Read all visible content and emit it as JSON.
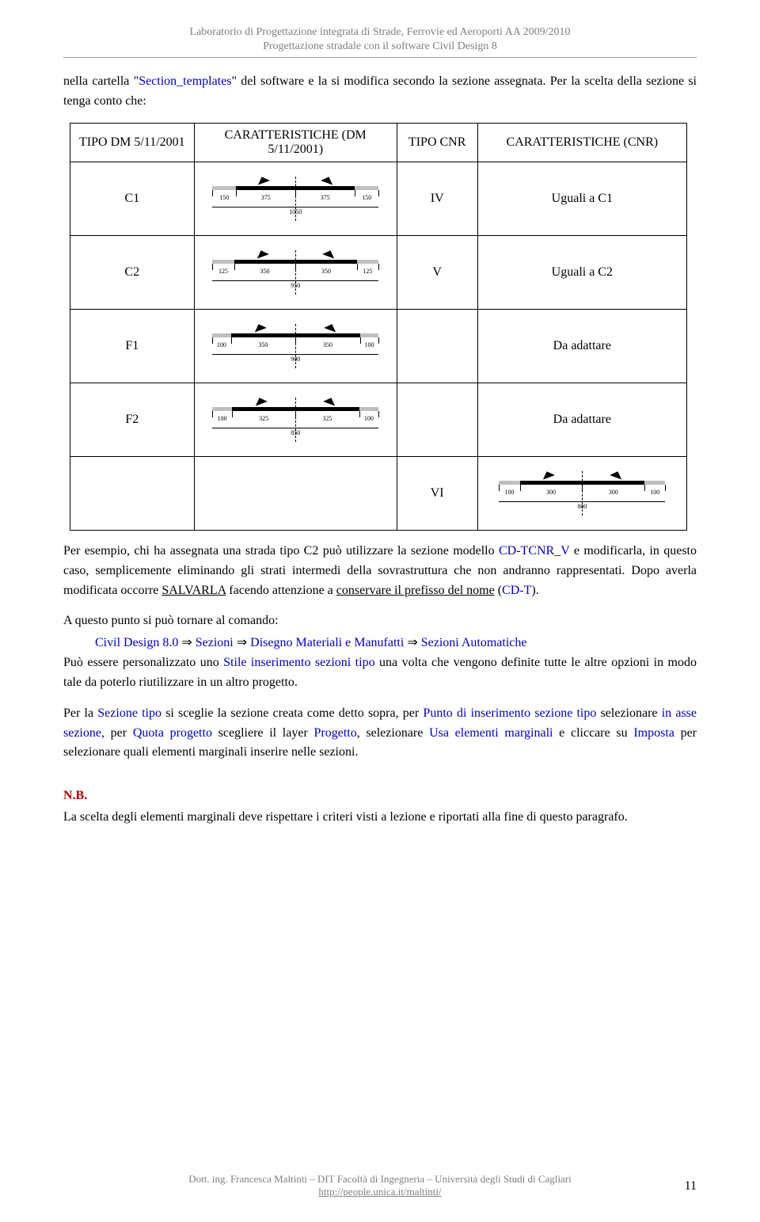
{
  "header": {
    "line1": "Laboratorio di Progettazione integrata di Strade, Ferrovie ed Aeroporti AA 2009/2010",
    "line2": "Progettazione stradale con il software Civil Design 8"
  },
  "introPara": {
    "plain1": "nella cartella \"",
    "link1": "Section_templates",
    "plain2": "\" del software e la si modifica secondo la sezione assegnata. Per la scelta della sezione si tenga conto che:"
  },
  "table": {
    "headers": {
      "tipo": "TIPO DM 5/11/2001",
      "car": "CARATTERISTICHE (DM 5/11/2001)",
      "cnr": "TIPO CNR",
      "ccnr": "CARATTERISTICHE (CNR)"
    },
    "rows": [
      {
        "tipo": "C1",
        "segs": [
          "150",
          "375",
          "375",
          "150"
        ],
        "total": "1050",
        "cnr": "IV",
        "ccnr": "Uguali a C1",
        "drawRight": false
      },
      {
        "tipo": "C2",
        "segs": [
          "125",
          "350",
          "350",
          "125"
        ],
        "total": "950",
        "cnr": "V",
        "ccnr": "Uguali a C2",
        "drawRight": false
      },
      {
        "tipo": "F1",
        "segs": [
          "100",
          "350",
          "350",
          "100"
        ],
        "total": "900",
        "cnr": "",
        "ccnr": "Da adattare",
        "drawRight": false
      },
      {
        "tipo": "F2",
        "segs": [
          "100",
          "325",
          "325",
          "100"
        ],
        "total": "850",
        "cnr": "",
        "ccnr": "Da adattare",
        "drawRight": false
      },
      {
        "tipo": "",
        "segs": [],
        "total": "",
        "cnr": "VI",
        "ccnr": "",
        "drawRight": true,
        "rSegs": [
          "100",
          "300",
          "300",
          "100"
        ],
        "rTotal": "800"
      }
    ]
  },
  "body": {
    "p1a": "Per esempio, chi ha assegnata una strada tipo C2 può utilizzare la sezione modello ",
    "p1link": "CD-TCNR_V",
    "p1b": " e modificarla, in questo caso, semplicemente eliminando gli strati intermedi della sovrastruttura che non andranno rappresentati. Dopo averla modificata occorre ",
    "p1u": "SALVARLA",
    "p1c": " facendo attenzione a ",
    "p1u2": "conservare il prefisso del nome",
    "p1d": " (",
    "p1link2": "CD-T",
    "p1e": ").",
    "p2": "A questo punto si può tornare al comando:",
    "cmd": {
      "a": "Civil Design 8.0",
      "b": "Sezioni",
      "c": "Disegno Materiali e Manufatti",
      "d": "Sezioni Automatiche"
    },
    "p3a": "Può essere personalizzato uno ",
    "p3b": "Stile inserimento sezioni tipo",
    "p3c": " una volta che vengono definite tutte le altre opzioni in modo tale da poterlo riutilizzare in un altro progetto.",
    "p4a": "Per la ",
    "p4b": "Sezione tipo",
    "p4c": " si sceglie la sezione creata come detto sopra, per ",
    "p4d": "Punto di inserimento sezione tipo",
    "p4e": " selezionare ",
    "p4f": "in asse sezione,",
    "p4g": " per ",
    "p4h": "Quota progetto",
    "p4i": " scegliere il layer ",
    "p4j": "Progetto",
    "p4k": ", selezionare ",
    "p4l": "Usa elementi marginali",
    "p4m": " e cliccare su ",
    "p4n": "Imposta",
    "p4o": " per selezionare quali elementi marginali inserire nelle sezioni.",
    "nb": "N.B.",
    "nbText": "La scelta degli elementi marginali deve rispettare i criteri visti a lezione e riportati alla fine di questo paragrafo."
  },
  "footer": {
    "l1": "Dott. ing. Francesca Maltinti – DIT Facoltà di Ingegneria – Università degli Studi di Cagliari",
    "l2": "http://people.unica.it/maltinti/",
    "page": "11"
  }
}
